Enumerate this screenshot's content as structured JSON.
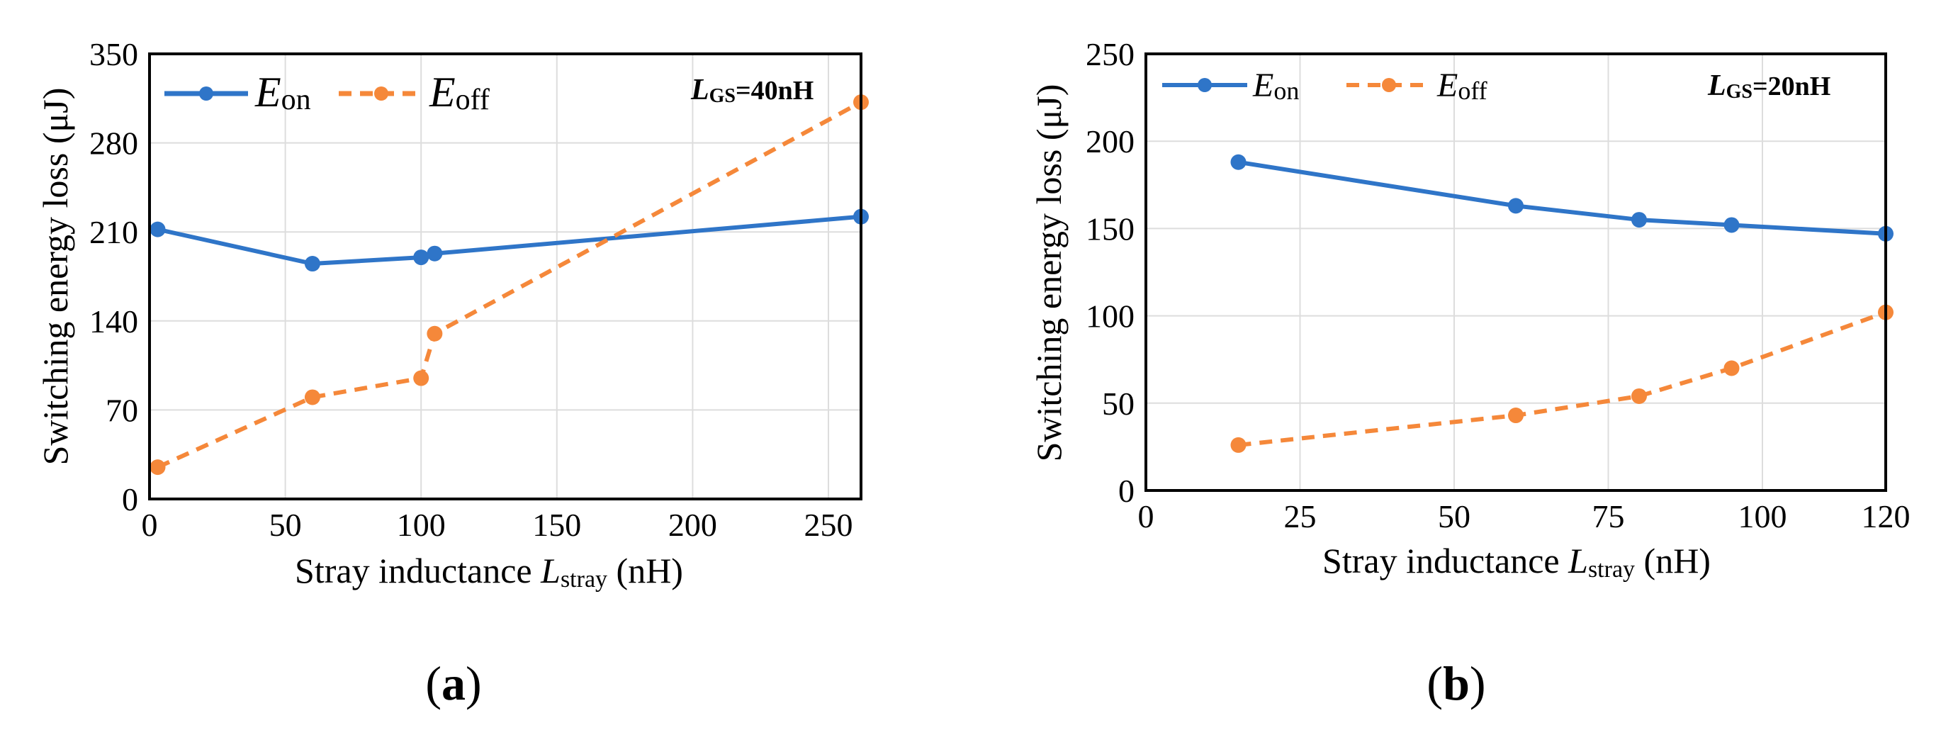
{
  "chart_data": [
    {
      "type": "line",
      "panel_label": "a",
      "xlabel_prefix": "Stray inductance ",
      "xlabel_var": "L",
      "xlabel_sub": "stray",
      "xlabel_unit": " (nH)",
      "ylabel": "Switching energy loss (μJ)",
      "xlim": [
        0,
        262
      ],
      "ylim": [
        0,
        350
      ],
      "xticks": [
        0,
        50,
        100,
        150,
        200,
        250
      ],
      "yticks": [
        0,
        70,
        140,
        210,
        280,
        350
      ],
      "grid": true,
      "legend_position": "top-left",
      "annotation": {
        "var": "L",
        "sub": "GS",
        "value": "=40nH"
      },
      "series": [
        {
          "name_var": "E",
          "name_sub": "on",
          "color": "#2f75c8",
          "dash": "solid",
          "x": [
            3,
            60,
            100,
            105,
            262
          ],
          "y": [
            212,
            185,
            190,
            193,
            222
          ]
        },
        {
          "name_var": "E",
          "name_sub": "off",
          "color": "#f5883a",
          "dash": "dashed",
          "x": [
            3,
            60,
            100,
            105,
            262
          ],
          "y": [
            25,
            80,
            95,
            130,
            312
          ]
        }
      ]
    },
    {
      "type": "line",
      "panel_label": "b",
      "xlabel_prefix": "Stray inductance ",
      "xlabel_var": "L",
      "xlabel_sub": "stray",
      "xlabel_unit": " (nH)",
      "ylabel": "Switching energy loss (μJ)",
      "xlim": [
        0,
        120
      ],
      "ylim": [
        0,
        250
      ],
      "xticks": [
        0,
        25,
        50,
        75,
        100,
        120
      ],
      "yticks": [
        0,
        50,
        100,
        150,
        200,
        250
      ],
      "grid": true,
      "legend_position": "top-left",
      "annotation": {
        "var": "L",
        "sub": "GS",
        "value": "=20nH"
      },
      "series": [
        {
          "name_var": "E",
          "name_sub": "on",
          "color": "#2f75c8",
          "dash": "solid",
          "x": [
            15,
            60,
            80,
            95,
            120
          ],
          "y": [
            188,
            163,
            155,
            152,
            147
          ]
        },
        {
          "name_var": "E",
          "name_sub": "off",
          "color": "#f5883a",
          "dash": "dashed",
          "x": [
            15,
            60,
            80,
            95,
            120
          ],
          "y": [
            26,
            43,
            54,
            70,
            102
          ]
        }
      ]
    }
  ]
}
